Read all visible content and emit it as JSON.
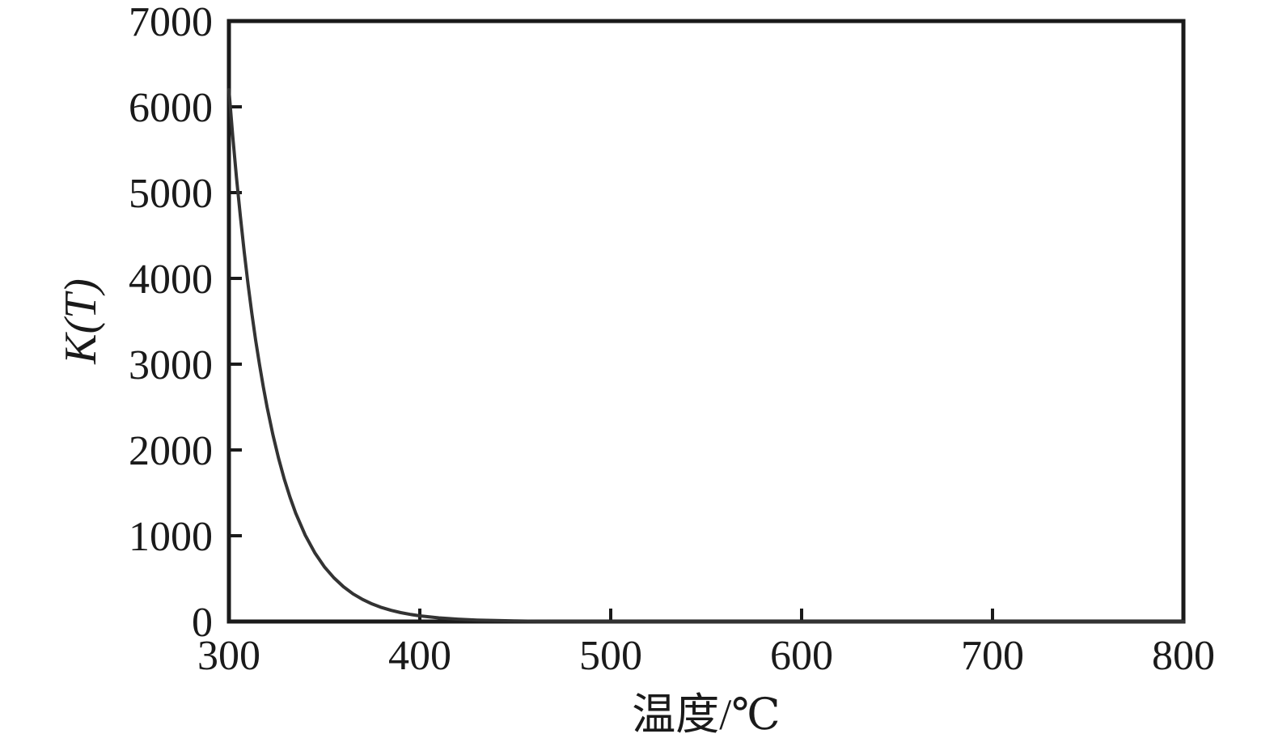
{
  "figure": {
    "background": "#ffffff",
    "axis_color": "#1a1a1a",
    "text_color": "#1a1a1a"
  },
  "chart_data": {
    "type": "line",
    "title": "",
    "xlabel": "温度/℃",
    "ylabel": "K(T)",
    "xlim": [
      300,
      800
    ],
    "ylim": [
      0,
      7000
    ],
    "x_ticks": [
      300,
      400,
      500,
      600,
      700,
      800
    ],
    "y_ticks": [
      0,
      1000,
      2000,
      3000,
      4000,
      5000,
      6000,
      7000
    ],
    "grid": false,
    "legend_position": "none",
    "tick_direction": "in",
    "series": [
      {
        "name": "K(T)",
        "color": "#333333",
        "points": [
          [
            300,
            6200
          ],
          [
            302,
            5661
          ],
          [
            304,
            5171
          ],
          [
            306,
            4721
          ],
          [
            308,
            4310
          ],
          [
            310,
            3936
          ],
          [
            312,
            3594
          ],
          [
            314,
            3282
          ],
          [
            316,
            2997
          ],
          [
            318,
            2737
          ],
          [
            320,
            2499
          ],
          [
            323,
            2180
          ],
          [
            326,
            1903
          ],
          [
            329,
            1661
          ],
          [
            332,
            1450
          ],
          [
            335,
            1262
          ],
          [
            340,
            1006
          ],
          [
            345,
            801
          ],
          [
            350,
            638
          ],
          [
            355,
            509
          ],
          [
            360,
            406
          ],
          [
            365,
            323
          ],
          [
            370,
            258
          ],
          [
            375,
            205
          ],
          [
            380,
            163
          ],
          [
            385,
            130
          ],
          [
            390,
            104
          ],
          [
            395,
            83
          ],
          [
            400,
            66
          ],
          [
            410,
            42
          ],
          [
            420,
            27
          ],
          [
            430,
            17
          ],
          [
            440,
            11
          ],
          [
            450,
            7
          ],
          [
            460,
            4
          ],
          [
            470,
            3
          ],
          [
            480,
            2
          ],
          [
            490,
            1
          ],
          [
            500,
            1
          ],
          [
            520,
            0
          ],
          [
            540,
            0
          ],
          [
            560,
            0
          ],
          [
            580,
            0
          ],
          [
            600,
            0
          ],
          [
            650,
            0
          ],
          [
            700,
            0
          ],
          [
            750,
            0
          ],
          [
            800,
            0
          ]
        ]
      }
    ]
  }
}
